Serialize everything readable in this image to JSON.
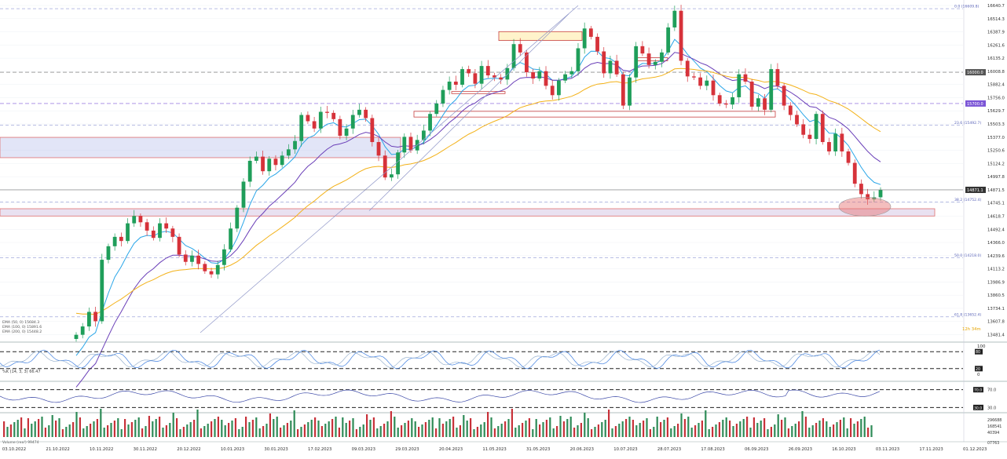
{
  "chart_data": {
    "type": "candlestick",
    "x_axis_labels": [
      "03.10.2022",
      "21.10.2022",
      "10.11.2022",
      "30.11.2022",
      "20.12.2022",
      "10.01.2023",
      "30.01.2023",
      "17.02.2023",
      "09.03.2023",
      "29.03.2023",
      "20.04.2023",
      "11.05.2023",
      "31.05.2023",
      "20.06.2023",
      "10.07.2023",
      "28.07.2023",
      "17.08.2023",
      "06.09.2023",
      "26.09.2023",
      "16.10.2023",
      "03.11.2023",
      "17.11.2023",
      "01.12.2023"
    ],
    "y_axis_labels": [
      "16640.7",
      "16514.3",
      "16387.9",
      "16261.6",
      "16135.2",
      "16008.8",
      "15882.4",
      "15756.0",
      "15629.7",
      "15503.3",
      "15377.0",
      "15250.6",
      "15124.2",
      "14997.8",
      "14871.5",
      "14745.1",
      "14618.7",
      "14492.4",
      "14366.0",
      "14239.6",
      "14113.2",
      "13986.9",
      "13860.5",
      "13734.1",
      "13607.8",
      "13481.4"
    ],
    "ylim": [
      13481.4,
      16640.7
    ],
    "last_price": "14871.1",
    "level_tags": [
      "16000.0",
      "15700.0"
    ],
    "fib_labels": [
      "0.0 (16609.8)",
      "23.6 (15492.7)",
      "38.2 (14752.4)",
      "50.0 (14218.0)",
      "61.8 (13652.4)"
    ],
    "fib_values": [
      16609.8,
      15492.7,
      14752.4,
      14218.0,
      13652.4
    ],
    "ma_legend": [
      "EMA (50, 0) 15684.3",
      "EMA (100, 0) 15891.6",
      "EMA (200, 0) 15448.2"
    ],
    "corner_note": "12h 34m",
    "series": [
      {
        "name": "price",
        "closes": [
          13480,
          13560,
          13700,
          13610,
          14200,
          14330,
          14420,
          14380,
          14550,
          14620,
          14560,
          14480,
          14410,
          14550,
          14500,
          14420,
          14250,
          14180,
          14240,
          14160,
          14090,
          14060,
          14150,
          14300,
          14500,
          14700,
          14950,
          15150,
          15190,
          15050,
          15170,
          15110,
          15200,
          15260,
          15340,
          15590,
          15530,
          15460,
          15620,
          15610,
          15550,
          15390,
          15460,
          15590,
          15640,
          15560,
          15330,
          15200,
          14990,
          15020,
          15230,
          15380,
          15250,
          15350,
          15440,
          15600,
          15700,
          15830,
          15910,
          15880,
          16030,
          15990,
          15890,
          16060,
          15970,
          15950,
          15930,
          16040,
          16270,
          16190,
          16000,
          15940,
          16010,
          15870,
          15780,
          15920,
          15980,
          16010,
          16230,
          16420,
          16340,
          16200,
          15990,
          16110,
          15980,
          15680,
          15950,
          16250,
          16180,
          16070,
          16100,
          16190,
          16430,
          16590,
          16110,
          15960,
          15950,
          15870,
          15920,
          15780,
          15700,
          15690,
          15760,
          15980,
          15910,
          15670,
          15750,
          15640,
          16030,
          15870,
          15680,
          15590,
          15500,
          15400,
          15360,
          15600,
          15330,
          15240,
          15410,
          15240,
          15130,
          14930,
          14830,
          14780,
          14800,
          14870
        ]
      }
    ],
    "oscillator_levels": [
      80,
      20
    ],
    "rsi_levels": [
      70.0,
      30.0
    ],
    "volume_labels": [
      "296688",
      "168541",
      "40394"
    ],
    "volume_indicator": "Volume (rea!) 99474"
  },
  "ui": {
    "legend_stochastic": "%K (14, 3, 3) 66.47",
    "axis_osc_top": "100",
    "axis_osc_bottom": "0",
    "axis_rsi_tag_top": "70.0",
    "axis_rsi_tag_bottom": "30.0",
    "axis_vol_tag": "07763"
  }
}
